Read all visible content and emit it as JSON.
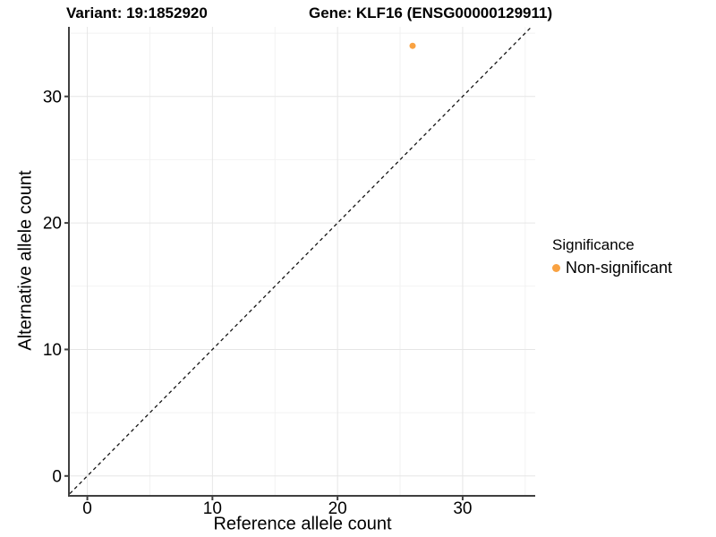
{
  "chart_data": {
    "type": "scatter",
    "titles": {
      "variant": "Variant: 19:1852920",
      "gene": "Gene: KLF16 (ENSG00000129911)"
    },
    "xlabel": "Reference allele count",
    "ylabel": "Alternative allele count",
    "xlim": [
      -1.4,
      35.8
    ],
    "ylim": [
      -1.5,
      35.5
    ],
    "x_ticks": [
      0,
      10,
      20,
      30
    ],
    "y_ticks": [
      0,
      10,
      20,
      30
    ],
    "x_minor_ticks": [
      5,
      15,
      25,
      35
    ],
    "y_minor_ticks": [
      5,
      15,
      25,
      35
    ],
    "grid": "major+minor",
    "points": [
      {
        "x": 26,
        "y": 34,
        "series": "Non-significant",
        "color": "#F9A242"
      }
    ],
    "reference_line": {
      "type": "identity",
      "slope": 1,
      "intercept": 0,
      "style": "dashed",
      "color": "#141414"
    },
    "legend": {
      "position": "right",
      "title": "Significance",
      "items": [
        {
          "label": "Non-significant",
          "color": "#F9A242"
        }
      ]
    },
    "colors": {
      "grid_major": "#E6E6E6",
      "grid_minor": "#F2F2F2",
      "axis": "#404040",
      "tick_label": "#000000"
    }
  }
}
